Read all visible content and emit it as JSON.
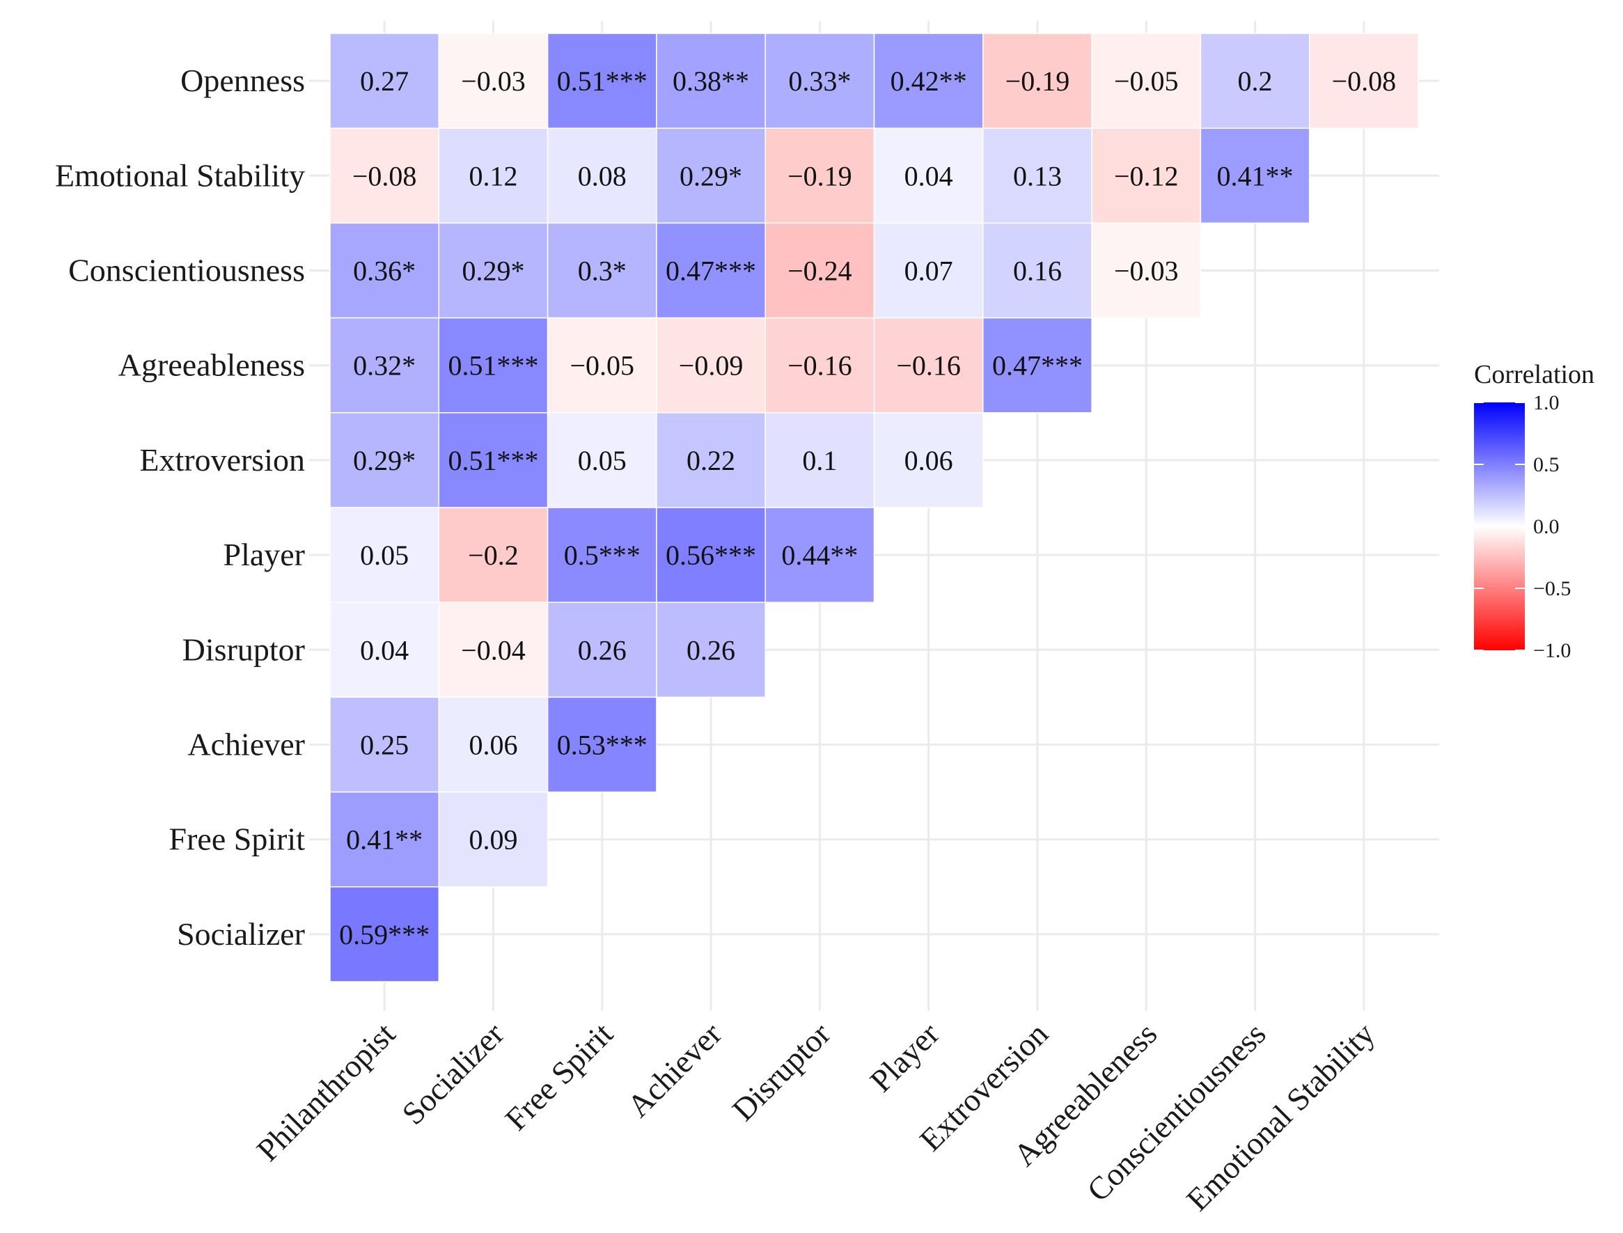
{
  "chart_data": {
    "type": "heatmap",
    "title": "",
    "xlabel": "",
    "ylabel": "",
    "x_categories": [
      "Philanthropist",
      "Socializer",
      "Free Spirit",
      "Achiever",
      "Disruptor",
      "Player",
      "Extroversion",
      "Agreeableness",
      "Conscientiousness",
      "Emotional Stability"
    ],
    "y_categories": [
      "Openness",
      "Emotional Stability",
      "Conscientiousness",
      "Agreeableness",
      "Extroversion",
      "Player",
      "Disruptor",
      "Achiever",
      "Free Spirit",
      "Socializer"
    ],
    "cells": [
      {
        "row": "Openness",
        "col": "Philanthropist",
        "value": 0.27,
        "label": "0.27"
      },
      {
        "row": "Openness",
        "col": "Socializer",
        "value": -0.03,
        "label": "−0.03"
      },
      {
        "row": "Openness",
        "col": "Free Spirit",
        "value": 0.51,
        "label": "0.51***"
      },
      {
        "row": "Openness",
        "col": "Achiever",
        "value": 0.38,
        "label": "0.38**"
      },
      {
        "row": "Openness",
        "col": "Disruptor",
        "value": 0.33,
        "label": "0.33*"
      },
      {
        "row": "Openness",
        "col": "Player",
        "value": 0.42,
        "label": "0.42**"
      },
      {
        "row": "Openness",
        "col": "Extroversion",
        "value": -0.19,
        "label": "−0.19"
      },
      {
        "row": "Openness",
        "col": "Agreeableness",
        "value": -0.05,
        "label": "−0.05"
      },
      {
        "row": "Openness",
        "col": "Conscientiousness",
        "value": 0.2,
        "label": "0.2"
      },
      {
        "row": "Openness",
        "col": "Emotional Stability",
        "value": -0.08,
        "label": "−0.08"
      },
      {
        "row": "Emotional Stability",
        "col": "Philanthropist",
        "value": -0.08,
        "label": "−0.08"
      },
      {
        "row": "Emotional Stability",
        "col": "Socializer",
        "value": 0.12,
        "label": "0.12"
      },
      {
        "row": "Emotional Stability",
        "col": "Free Spirit",
        "value": 0.08,
        "label": "0.08"
      },
      {
        "row": "Emotional Stability",
        "col": "Achiever",
        "value": 0.29,
        "label": "0.29*"
      },
      {
        "row": "Emotional Stability",
        "col": "Disruptor",
        "value": -0.19,
        "label": "−0.19"
      },
      {
        "row": "Emotional Stability",
        "col": "Player",
        "value": 0.04,
        "label": "0.04"
      },
      {
        "row": "Emotional Stability",
        "col": "Extroversion",
        "value": 0.13,
        "label": "0.13"
      },
      {
        "row": "Emotional Stability",
        "col": "Agreeableness",
        "value": -0.12,
        "label": "−0.12"
      },
      {
        "row": "Emotional Stability",
        "col": "Conscientiousness",
        "value": 0.41,
        "label": "0.41**"
      },
      {
        "row": "Conscientiousness",
        "col": "Philanthropist",
        "value": 0.36,
        "label": "0.36*"
      },
      {
        "row": "Conscientiousness",
        "col": "Socializer",
        "value": 0.29,
        "label": "0.29*"
      },
      {
        "row": "Conscientiousness",
        "col": "Free Spirit",
        "value": 0.3,
        "label": "0.3*"
      },
      {
        "row": "Conscientiousness",
        "col": "Achiever",
        "value": 0.47,
        "label": "0.47***"
      },
      {
        "row": "Conscientiousness",
        "col": "Disruptor",
        "value": -0.24,
        "label": "−0.24"
      },
      {
        "row": "Conscientiousness",
        "col": "Player",
        "value": 0.07,
        "label": "0.07"
      },
      {
        "row": "Conscientiousness",
        "col": "Extroversion",
        "value": 0.16,
        "label": "0.16"
      },
      {
        "row": "Conscientiousness",
        "col": "Agreeableness",
        "value": -0.03,
        "label": "−0.03"
      },
      {
        "row": "Agreeableness",
        "col": "Philanthropist",
        "value": 0.32,
        "label": "0.32*"
      },
      {
        "row": "Agreeableness",
        "col": "Socializer",
        "value": 0.51,
        "label": "0.51***"
      },
      {
        "row": "Agreeableness",
        "col": "Free Spirit",
        "value": -0.05,
        "label": "−0.05"
      },
      {
        "row": "Agreeableness",
        "col": "Achiever",
        "value": -0.09,
        "label": "−0.09"
      },
      {
        "row": "Agreeableness",
        "col": "Disruptor",
        "value": -0.16,
        "label": "−0.16"
      },
      {
        "row": "Agreeableness",
        "col": "Player",
        "value": -0.16,
        "label": "−0.16"
      },
      {
        "row": "Agreeableness",
        "col": "Extroversion",
        "value": 0.47,
        "label": "0.47***"
      },
      {
        "row": "Extroversion",
        "col": "Philanthropist",
        "value": 0.29,
        "label": "0.29*"
      },
      {
        "row": "Extroversion",
        "col": "Socializer",
        "value": 0.51,
        "label": "0.51***"
      },
      {
        "row": "Extroversion",
        "col": "Free Spirit",
        "value": 0.05,
        "label": "0.05"
      },
      {
        "row": "Extroversion",
        "col": "Achiever",
        "value": 0.22,
        "label": "0.22"
      },
      {
        "row": "Extroversion",
        "col": "Disruptor",
        "value": 0.1,
        "label": "0.1"
      },
      {
        "row": "Extroversion",
        "col": "Player",
        "value": 0.06,
        "label": "0.06"
      },
      {
        "row": "Player",
        "col": "Philanthropist",
        "value": 0.05,
        "label": "0.05"
      },
      {
        "row": "Player",
        "col": "Socializer",
        "value": -0.2,
        "label": "−0.2"
      },
      {
        "row": "Player",
        "col": "Free Spirit",
        "value": 0.5,
        "label": "0.5***"
      },
      {
        "row": "Player",
        "col": "Achiever",
        "value": 0.56,
        "label": "0.56***"
      },
      {
        "row": "Player",
        "col": "Disruptor",
        "value": 0.44,
        "label": "0.44**"
      },
      {
        "row": "Disruptor",
        "col": "Philanthropist",
        "value": 0.04,
        "label": "0.04"
      },
      {
        "row": "Disruptor",
        "col": "Socializer",
        "value": -0.04,
        "label": "−0.04"
      },
      {
        "row": "Disruptor",
        "col": "Free Spirit",
        "value": 0.26,
        "label": "0.26"
      },
      {
        "row": "Disruptor",
        "col": "Achiever",
        "value": 0.26,
        "label": "0.26"
      },
      {
        "row": "Achiever",
        "col": "Philanthropist",
        "value": 0.25,
        "label": "0.25"
      },
      {
        "row": "Achiever",
        "col": "Socializer",
        "value": 0.06,
        "label": "0.06"
      },
      {
        "row": "Achiever",
        "col": "Free Spirit",
        "value": 0.53,
        "label": "0.53***"
      },
      {
        "row": "Free Spirit",
        "col": "Philanthropist",
        "value": 0.41,
        "label": "0.41**"
      },
      {
        "row": "Free Spirit",
        "col": "Socializer",
        "value": 0.09,
        "label": "0.09"
      },
      {
        "row": "Socializer",
        "col": "Philanthropist",
        "value": 0.59,
        "label": "0.59***"
      }
    ],
    "legend": {
      "title": "Correlation",
      "position": "right",
      "range": [
        -1.0,
        1.0
      ],
      "ticks": [
        {
          "value": 1.0,
          "label": "1.0"
        },
        {
          "value": 0.5,
          "label": "0.5"
        },
        {
          "value": 0.0,
          "label": "0.0"
        },
        {
          "value": -0.5,
          "label": "−0.5"
        },
        {
          "value": -1.0,
          "label": "−1.0"
        }
      ]
    },
    "colors": {
      "low": "#ff0000",
      "mid": "#ffffff",
      "high": "#0000ff",
      "grid": "#ebebeb",
      "background": "#ffffff"
    },
    "grid": true
  }
}
